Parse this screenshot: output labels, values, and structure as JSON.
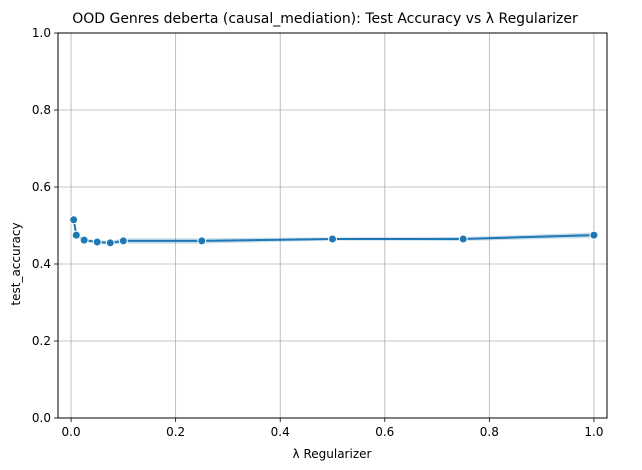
{
  "chart_data": {
    "type": "line",
    "title": "OOD Genres deberta (causal_mediation): Test Accuracy vs λ Regularizer",
    "xlabel": "λ Regularizer",
    "ylabel": "test_accuracy",
    "xlim": [
      -0.025,
      1.025
    ],
    "ylim": [
      0.0,
      1.0
    ],
    "xticks": [
      0.0,
      0.2,
      0.4,
      0.6,
      0.8,
      1.0
    ],
    "xtick_labels": [
      "0.0",
      "0.2",
      "0.4",
      "0.6",
      "0.8",
      "1.0"
    ],
    "yticks": [
      0.0,
      0.2,
      0.4,
      0.6,
      0.8,
      1.0
    ],
    "ytick_labels": [
      "0.0",
      "0.2",
      "0.4",
      "0.6",
      "0.8",
      "1.0"
    ],
    "grid": true,
    "series": [
      {
        "color": "#1f77b4",
        "marker": "circle",
        "x": [
          0.005,
          0.01,
          0.025,
          0.05,
          0.075,
          0.1,
          0.25,
          0.5,
          0.75,
          1.0
        ],
        "y": [
          0.515,
          0.475,
          0.462,
          0.457,
          0.455,
          0.46,
          0.46,
          0.465,
          0.465,
          0.475
        ],
        "ci_lower": [
          0.515,
          0.473,
          0.458,
          0.452,
          0.45,
          0.453,
          0.453,
          0.461,
          0.46,
          0.468
        ],
        "ci_upper": [
          0.515,
          0.477,
          0.466,
          0.462,
          0.46,
          0.467,
          0.467,
          0.469,
          0.47,
          0.482
        ]
      }
    ]
  }
}
